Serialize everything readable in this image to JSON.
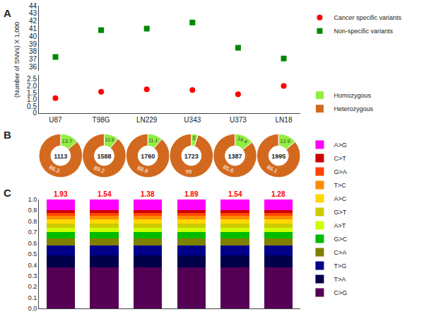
{
  "chart_data": [
    {
      "type": "scatter",
      "title": "A",
      "ylabel": "(Number of SNVs) X 1,000",
      "categories": [
        "U87",
        "T98G",
        "LN229",
        "U343",
        "U373",
        "LN18"
      ],
      "series": [
        {
          "name": "Cancer specific variants",
          "color": "#FF0000",
          "marker": "circle",
          "values": [
            1.1,
            1.57,
            1.75,
            1.7,
            1.38,
            2.0
          ]
        },
        {
          "name": "Non-specific variants",
          "color": "#008800",
          "marker": "square",
          "axis": "y2",
          "values": [
            37.3,
            40.8,
            41.0,
            41.8,
            38.5,
            37.1
          ]
        }
      ],
      "ylim": [
        0,
        2.8
      ],
      "yticks": [
        0,
        0.5,
        {
          "value": 1.0,
          "label": "1.0"
        },
        1.5,
        {
          "value": 2.0,
          "label": "2.0"
        },
        2.5
      ],
      "y2lim": [
        35.5,
        44
      ],
      "y2ticks": [
        36,
        37,
        38,
        39,
        40,
        41,
        42,
        43,
        44
      ],
      "grid": false,
      "legend": "right"
    },
    {
      "type": "pie",
      "title": "B",
      "categories": [
        "Homozygous",
        "Heterozygous"
      ],
      "colors": [
        "#90EE40",
        "#D2691E"
      ],
      "series": [
        {
          "values": [
            13.7,
            86.3
          ],
          "total": 1113
        },
        {
          "values": [
            10.8,
            89.2
          ],
          "total": 1588
        },
        {
          "values": [
            11.1,
            88.9
          ],
          "total": 1760
        },
        {
          "values": [
            5,
            95
          ],
          "total": 1723
        },
        {
          "values": [
            14.4,
            85.6
          ],
          "total": 1387
        },
        {
          "values": [
            13.9,
            86.1
          ],
          "total": 1995
        }
      ],
      "data_labels": true,
      "legend": "right"
    },
    {
      "type": "bar",
      "title": "C",
      "stacked": true,
      "categories": [
        null,
        null,
        null,
        null,
        null,
        null
      ],
      "series": [
        {
          "name": "A>G",
          "color": "#FF00FF",
          "values": [
            0.098,
            0.098,
            0.098,
            0.098,
            0.098,
            0.098
          ]
        },
        {
          "name": "C>T",
          "color": "#CC0000",
          "values": [
            0.026,
            0.026,
            0.026,
            0.026,
            0.026,
            0.026
          ]
        },
        {
          "name": "G>A",
          "color": "#FF4500",
          "values": [
            0.025,
            0.025,
            0.025,
            0.025,
            0.025,
            0.025
          ]
        },
        {
          "name": "T>C",
          "color": "#FF8C00",
          "values": [
            0.032,
            0.032,
            0.032,
            0.032,
            0.032,
            0.032
          ]
        },
        {
          "name": "A>C",
          "color": "#FFD700",
          "values": [
            0.04,
            0.04,
            0.04,
            0.04,
            0.04,
            0.04
          ]
        },
        {
          "name": "G>T",
          "color": "#CCCC00",
          "values": [
            0.038,
            0.038,
            0.038,
            0.038,
            0.038,
            0.038
          ]
        },
        {
          "name": "A>T",
          "color": "#CCFF00",
          "values": [
            0.04,
            0.04,
            0.04,
            0.04,
            0.04,
            0.04
          ]
        },
        {
          "name": "G>C",
          "color": "#00BB00",
          "values": [
            0.057,
            0.057,
            0.057,
            0.057,
            0.057,
            0.057
          ]
        },
        {
          "name": "C>A",
          "color": "#808000",
          "values": [
            0.065,
            0.065,
            0.065,
            0.065,
            0.065,
            0.065
          ]
        },
        {
          "name": "T>G",
          "color": "#00008B",
          "values": [
            0.095,
            0.095,
            0.095,
            0.095,
            0.095,
            0.095
          ]
        },
        {
          "name": "T>A",
          "color": "#00004B",
          "values": [
            0.105,
            0.105,
            0.105,
            0.105,
            0.105,
            0.105
          ]
        },
        {
          "name": "C>G",
          "color": "#550055",
          "values": [
            0.379,
            0.379,
            0.379,
            0.379,
            0.379,
            0.379
          ]
        }
      ],
      "ratios": {
        "values": [
          1.93,
          1.54,
          1.38,
          1.89,
          1.54,
          1.28
        ],
        "color": "red"
      },
      "ylim": [
        0,
        1
      ],
      "yticks": [
        {
          "value": 0,
          "label": "0.0"
        },
        0.1,
        0.2,
        0.3,
        0.4,
        0.5,
        0.6,
        0.7,
        0.8,
        0.9,
        {
          "value": 1,
          "label": "1.0"
        }
      ],
      "tick_labels": "y",
      "grid": false,
      "legend": "right"
    }
  ]
}
